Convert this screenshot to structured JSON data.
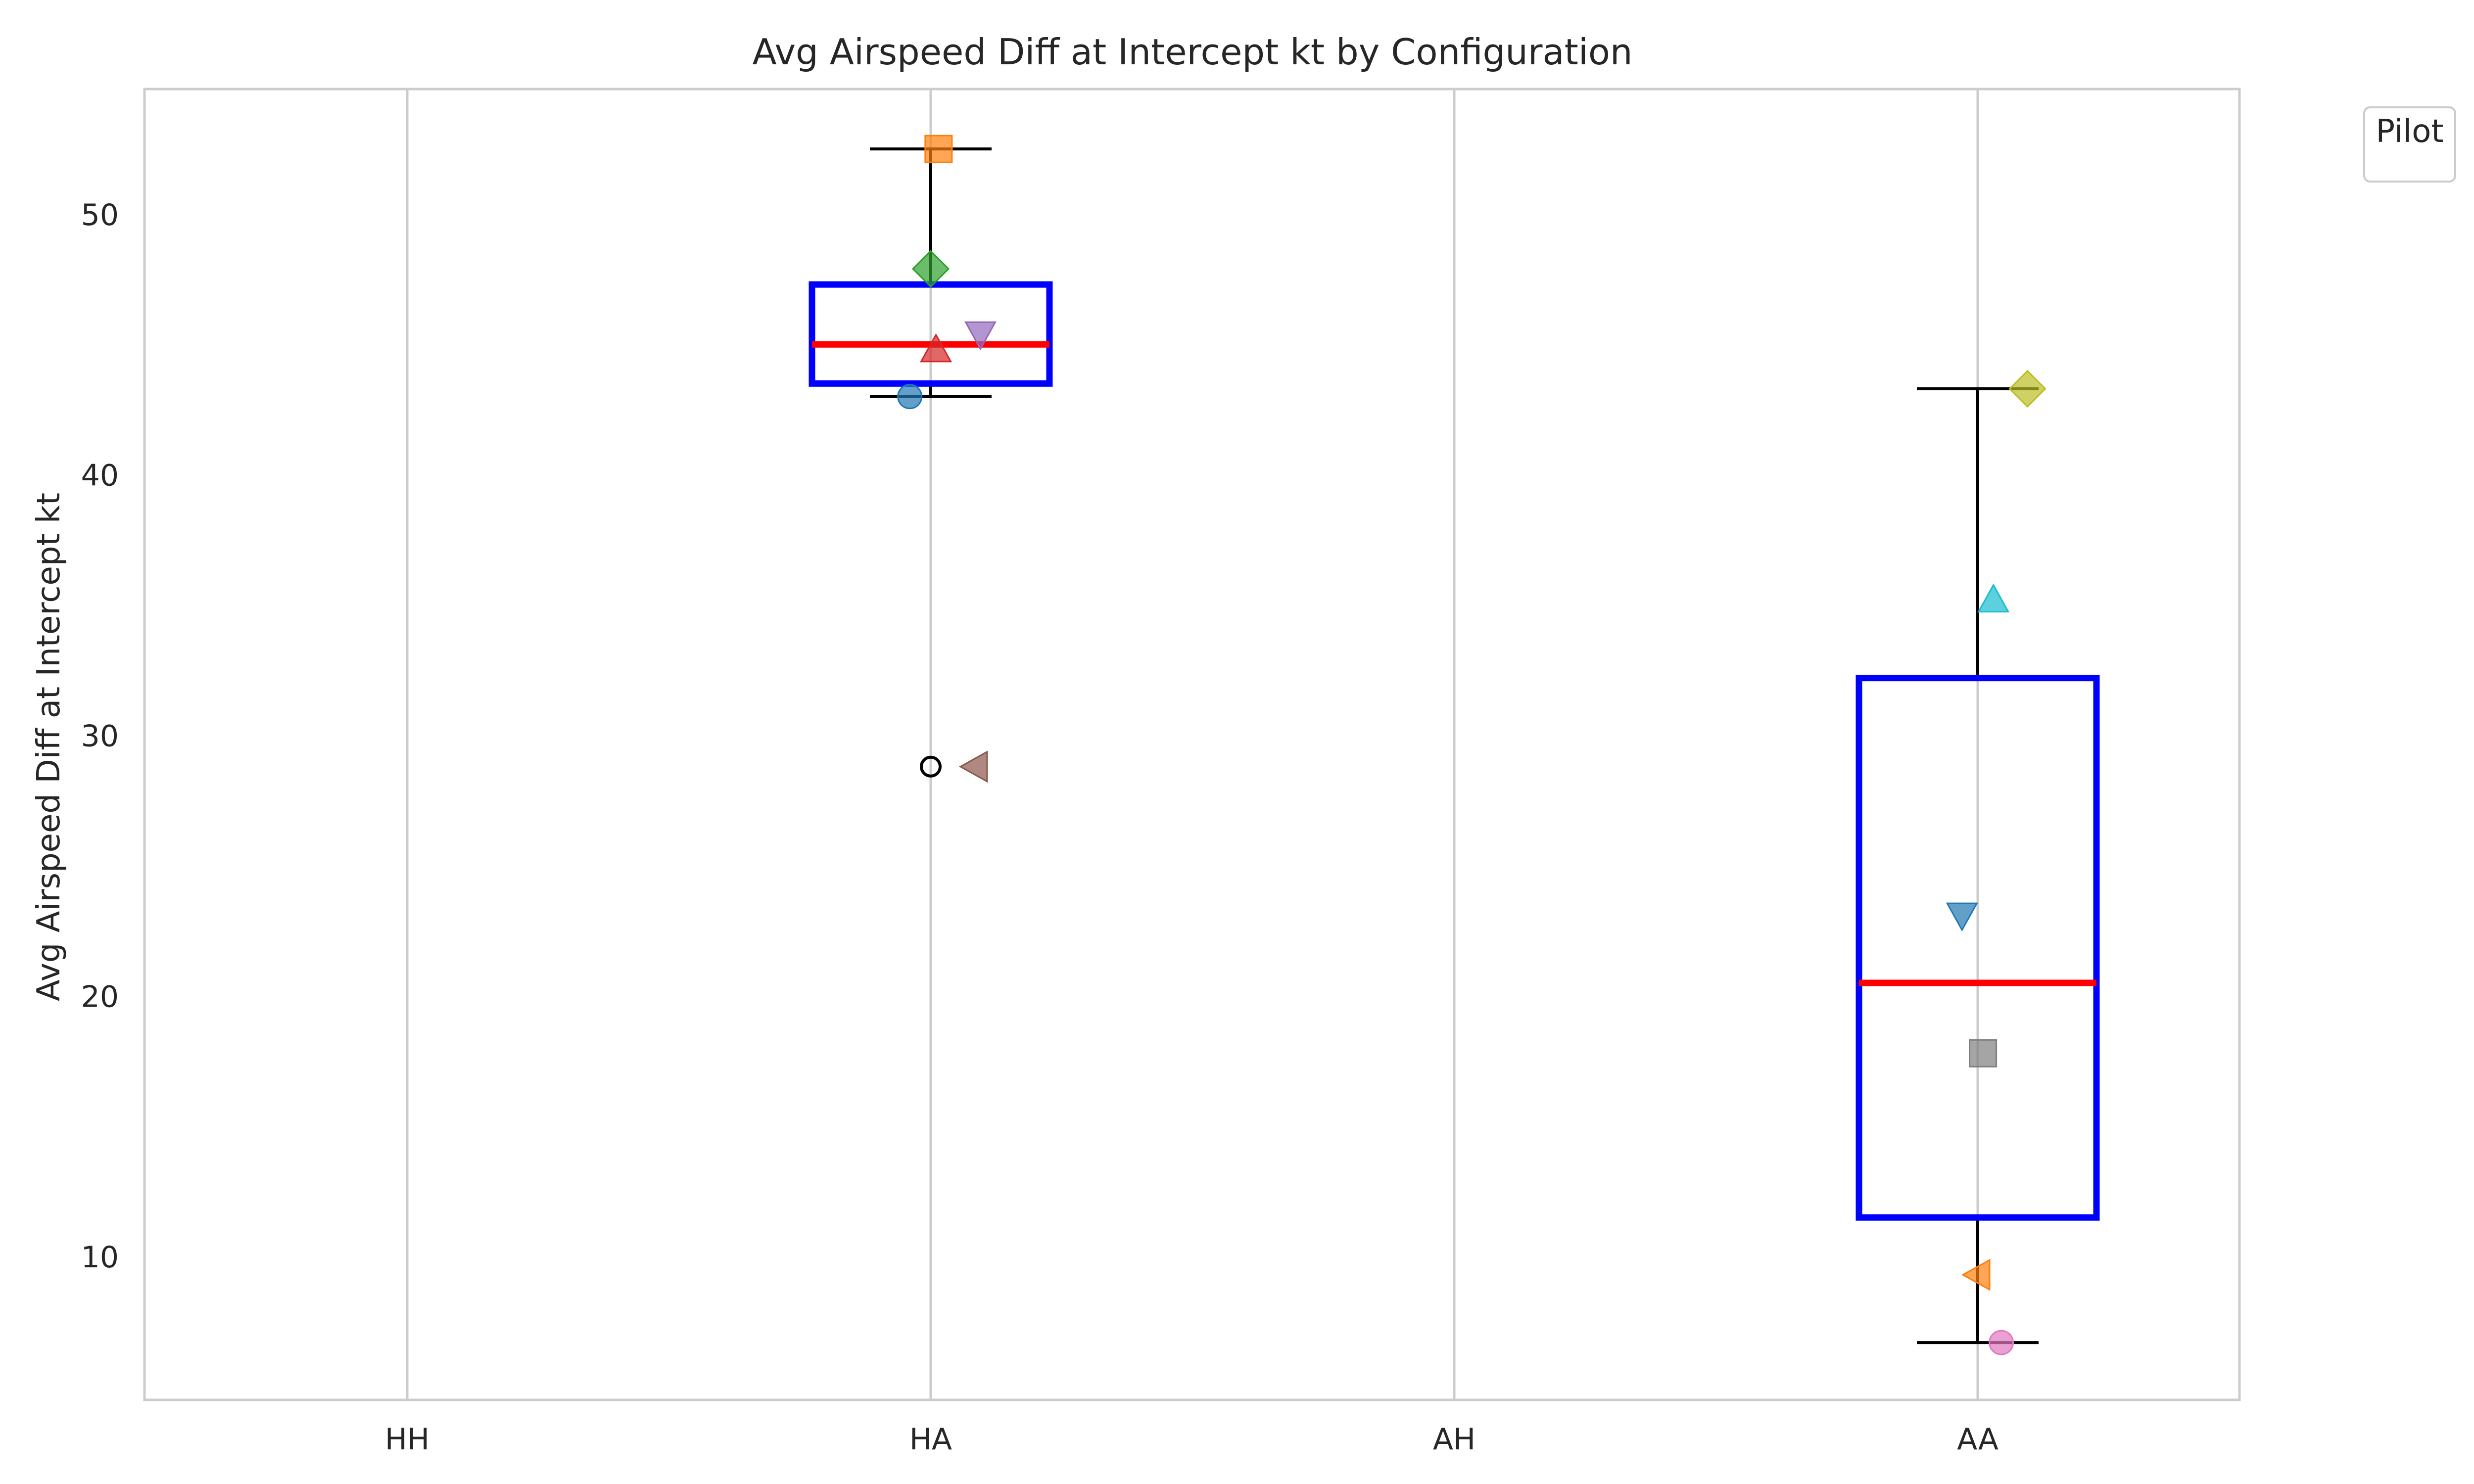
{
  "chart_data": {
    "type": "box",
    "title": "Avg Airspeed Diff at Intercept kt by Configuration",
    "xlabel": "",
    "ylabel": "Avg Airspeed Diff at Intercept kt",
    "categories": [
      "HH",
      "HA",
      "AH",
      "AA"
    ],
    "ylim": [
      4.5,
      54.8
    ],
    "yticks": [
      10,
      20,
      30,
      40,
      50
    ],
    "grid": "vertical",
    "legend": {
      "title": "Pilot",
      "placement": "top-right outside",
      "entries": []
    },
    "colors": {
      "box": "#0000ff",
      "median": "#ff0000",
      "whisker": "#000000",
      "grid": "#cccccc"
    },
    "boxes": [
      {
        "category": "HA",
        "whislo": 43.0,
        "q1": 43.5,
        "med": 45.0,
        "q3": 47.3,
        "whishi": 52.5,
        "fliers": [
          28.8
        ]
      },
      {
        "category": "AA",
        "whislo": 6.7,
        "q1": 11.5,
        "med": 20.5,
        "q3": 32.2,
        "whishi": 43.3,
        "fliers": []
      }
    ],
    "points": [
      {
        "category": "HA",
        "offset": -0.04,
        "y": 43.0,
        "marker": "circle",
        "color": "#1f77b4"
      },
      {
        "category": "HA",
        "offset": 0.015,
        "y": 52.5,
        "marker": "square",
        "color": "#ff7f0e"
      },
      {
        "category": "HA",
        "offset": 0.0,
        "y": 47.9,
        "marker": "diamond",
        "color": "#2ca02c"
      },
      {
        "category": "HA",
        "offset": 0.01,
        "y": 44.8,
        "marker": "triangle-up",
        "color": "#d62728"
      },
      {
        "category": "HA",
        "offset": 0.095,
        "y": 45.4,
        "marker": "triangle-down",
        "color": "#9467bd"
      },
      {
        "category": "HA",
        "offset": 0.085,
        "y": 28.8,
        "marker": "triangle-left",
        "color": "#8c564b"
      },
      {
        "category": "AA",
        "offset": 0.095,
        "y": 43.3,
        "marker": "diamond",
        "color": "#bcbd22"
      },
      {
        "category": "AA",
        "offset": 0.03,
        "y": 35.2,
        "marker": "triangle-up",
        "color": "#17becf"
      },
      {
        "category": "AA",
        "offset": -0.03,
        "y": 23.1,
        "marker": "triangle-down",
        "color": "#1f77b4"
      },
      {
        "category": "AA",
        "offset": 0.01,
        "y": 17.8,
        "marker": "square",
        "color": "#7f7f7f"
      },
      {
        "category": "AA",
        "offset": 0.0,
        "y": 9.3,
        "marker": "triangle-left",
        "color": "#ff7f0e"
      },
      {
        "category": "AA",
        "offset": 0.045,
        "y": 6.7,
        "marker": "circle",
        "color": "#e377c2"
      }
    ]
  }
}
